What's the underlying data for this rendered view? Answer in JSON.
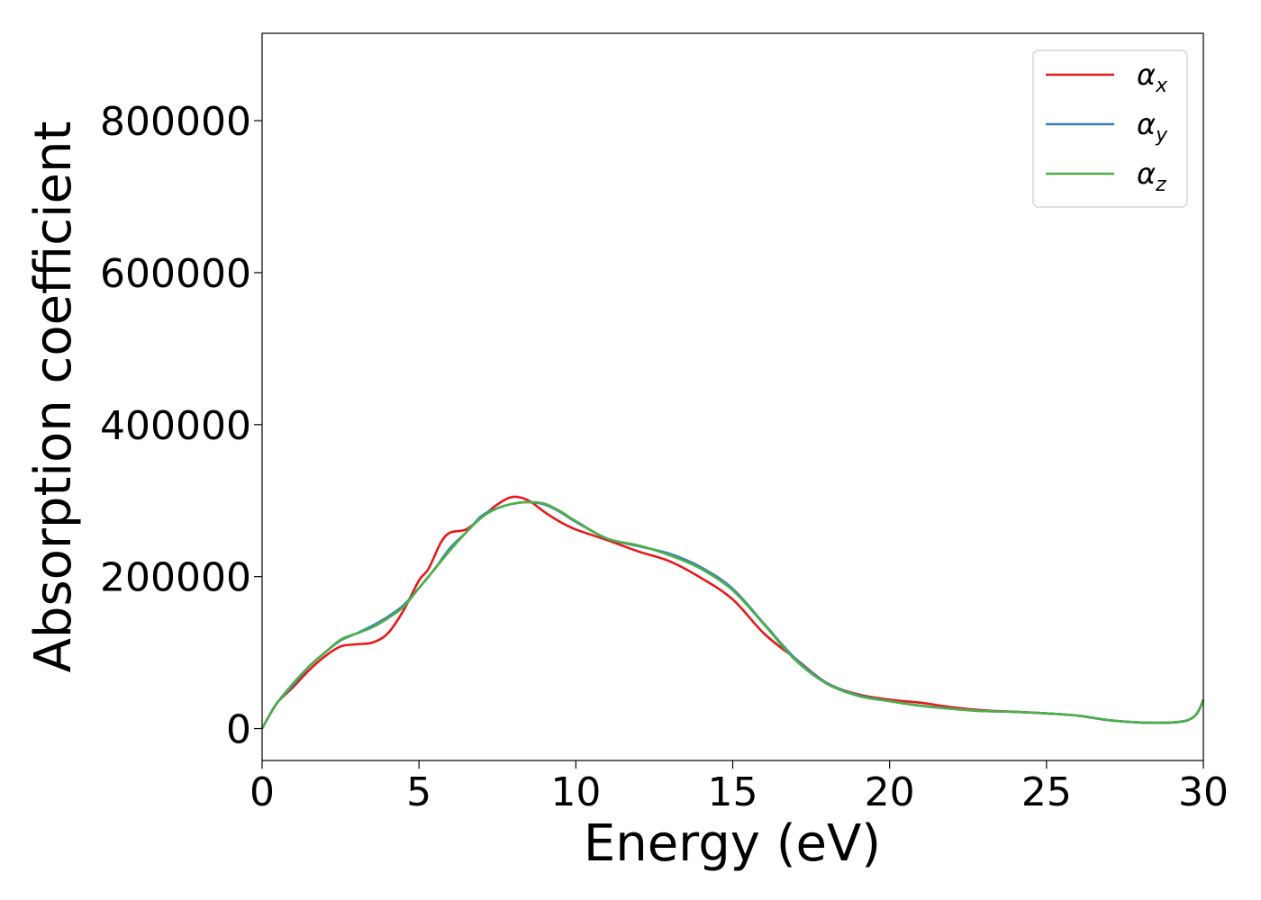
{
  "chart_data": {
    "type": "line",
    "title": "",
    "xlabel": "Energy (eV)",
    "ylabel": "Absorption coefficient",
    "xlim": [
      0,
      30
    ],
    "ylim": [
      -42000,
      915000
    ],
    "xticks": [
      0,
      5,
      10,
      15,
      20,
      25,
      30
    ],
    "yticks": [
      0,
      200000,
      400000,
      600000,
      800000
    ],
    "legend_position": "top-right",
    "grid": false,
    "series": [
      {
        "name": "α_x",
        "symbol": "α",
        "subscript": "x",
        "color": "#e41a1c",
        "x": [
          0,
          0.2,
          0.5,
          1,
          1.5,
          2,
          2.5,
          3,
          3.5,
          4,
          4.5,
          5,
          5.3,
          5.7,
          6,
          6.5,
          7,
          7.5,
          8,
          8.5,
          9,
          9.5,
          10,
          11,
          12,
          13,
          14,
          15,
          16,
          17,
          18,
          19,
          20,
          21,
          22,
          23,
          24,
          25,
          26,
          27,
          28,
          29,
          29.5,
          29.8,
          30
        ],
        "y": [
          0,
          15000,
          35000,
          55000,
          77000,
          95000,
          108000,
          111000,
          113000,
          125000,
          155000,
          195000,
          210000,
          245000,
          258000,
          262000,
          278000,
          295000,
          305000,
          300000,
          285000,
          272000,
          262000,
          248000,
          233000,
          220000,
          198000,
          170000,
          125000,
          92000,
          60000,
          45000,
          38000,
          34000,
          28000,
          24000,
          22000,
          20000,
          17000,
          11000,
          8000,
          8000,
          11000,
          20000,
          38000
        ]
      },
      {
        "name": "α_y",
        "symbol": "α",
        "subscript": "y",
        "color": "#377eb8",
        "x": [
          0,
          0.2,
          0.5,
          1,
          1.5,
          2,
          2.5,
          3,
          3.5,
          4,
          4.5,
          5,
          5.5,
          6,
          6.5,
          7,
          7.5,
          8,
          8.5,
          9,
          9.5,
          10,
          11,
          12,
          13,
          14,
          15,
          16,
          17,
          18,
          19,
          20,
          21,
          22,
          23,
          24,
          25,
          26,
          27,
          28,
          29,
          29.5,
          29.8,
          30
        ],
        "y": [
          0,
          15000,
          35000,
          58000,
          82000,
          100000,
          116000,
          125000,
          135000,
          147000,
          162000,
          185000,
          210000,
          238000,
          258000,
          280000,
          290000,
          296000,
          298000,
          295000,
          285000,
          272000,
          250000,
          240000,
          230000,
          212000,
          184000,
          138000,
          92000,
          60000,
          44000,
          36000,
          30000,
          26000,
          23000,
          22000,
          20000,
          17000,
          11000,
          8000,
          8000,
          11000,
          20000,
          38000
        ]
      },
      {
        "name": "α_z",
        "symbol": "α",
        "subscript": "z",
        "color": "#4daf4a",
        "x": [
          0,
          0.2,
          0.5,
          1,
          1.5,
          2,
          2.5,
          3,
          3.5,
          4,
          4.5,
          5,
          5.5,
          6,
          6.5,
          7,
          7.5,
          8,
          8.5,
          9,
          9.5,
          10,
          11,
          12,
          13,
          14,
          15,
          16,
          17,
          18,
          19,
          20,
          21,
          22,
          23,
          24,
          25,
          26,
          27,
          28,
          29,
          29.5,
          29.8,
          30
        ],
        "y": [
          0,
          15000,
          35000,
          60000,
          82000,
          100000,
          117000,
          125000,
          133000,
          145000,
          160000,
          185000,
          210000,
          235000,
          258000,
          278000,
          290000,
          296000,
          298000,
          296000,
          286000,
          273000,
          250000,
          241000,
          228000,
          210000,
          182000,
          137000,
          90000,
          59000,
          43000,
          36000,
          30000,
          26000,
          23000,
          22000,
          20000,
          17000,
          11000,
          8000,
          8000,
          11000,
          20000,
          38000
        ]
      }
    ]
  }
}
